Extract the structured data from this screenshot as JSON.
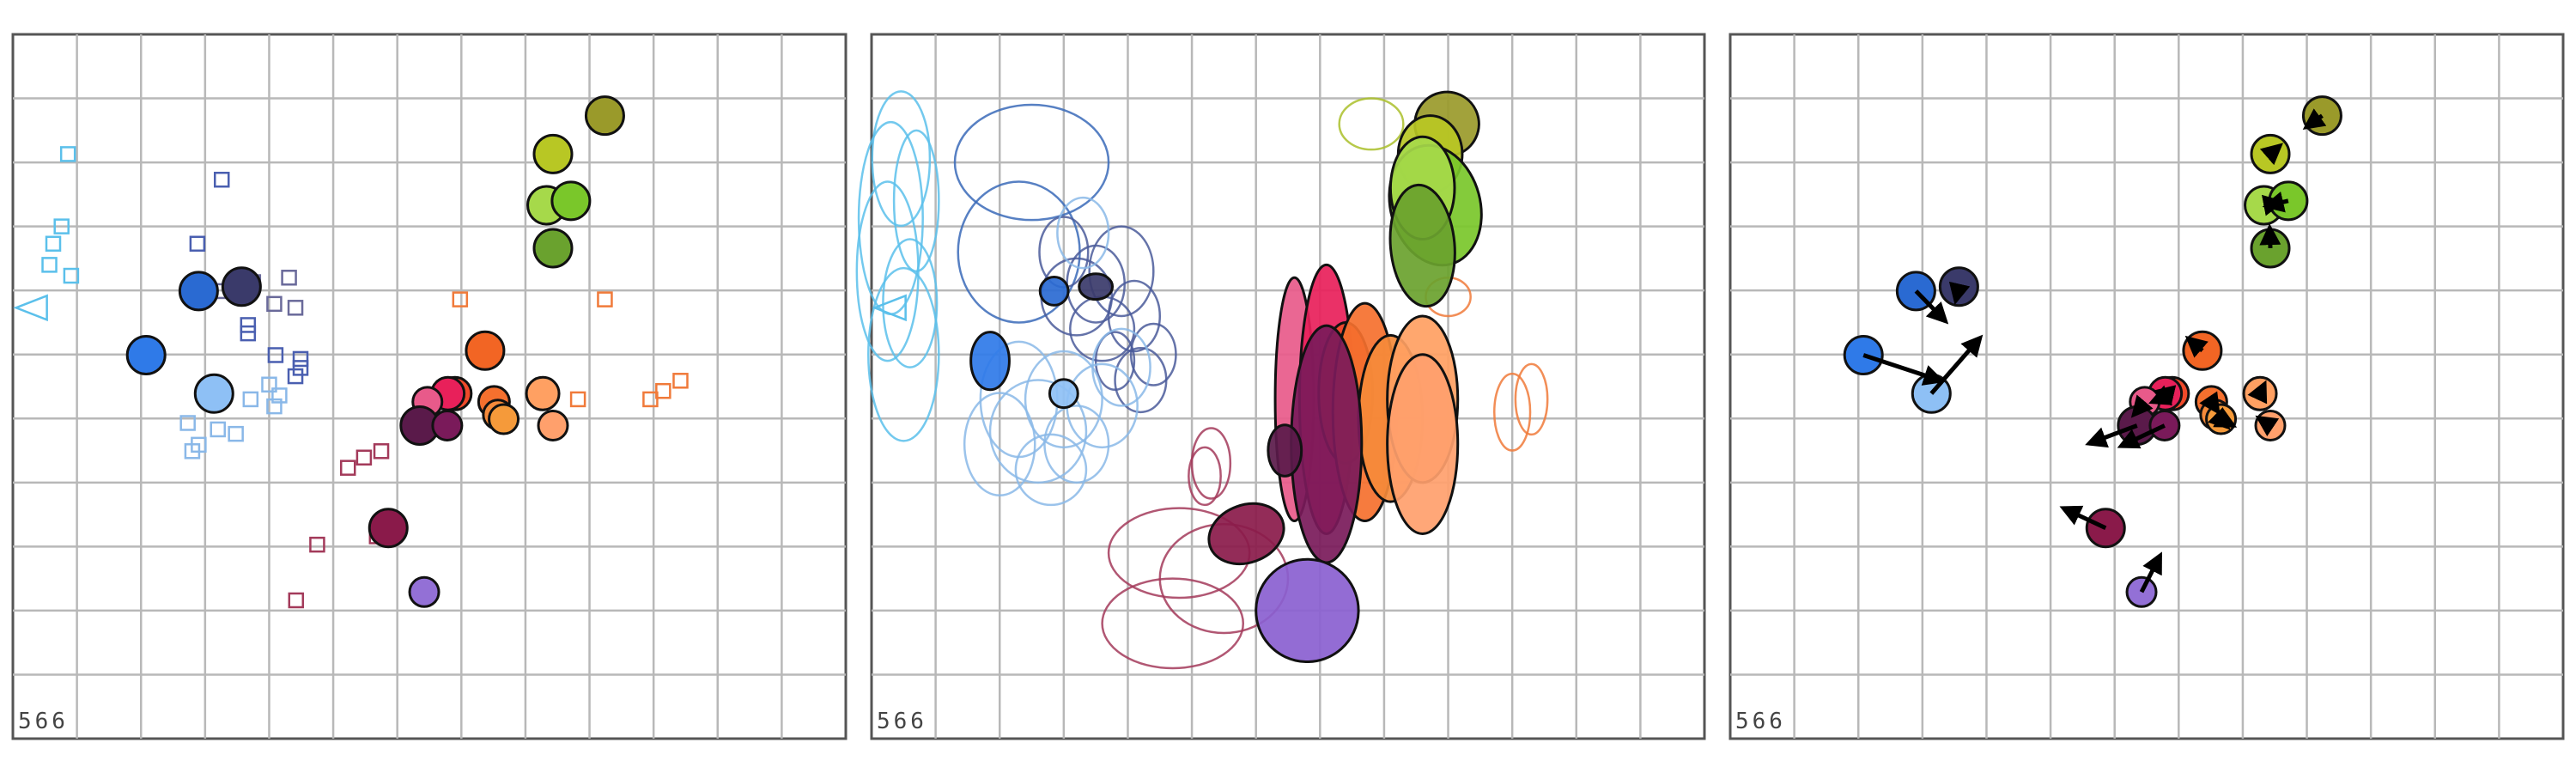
{
  "chart_data": [
    {
      "type": "scatter",
      "label": "566",
      "xlim": [
        0,
        13
      ],
      "ylim": [
        0,
        11
      ],
      "grid": true,
      "faded": false,
      "squares": [
        [
          0.86,
          9.13,
          "#5bc0eb"
        ],
        [
          0.76,
          8.0,
          "#5bc0eb"
        ],
        [
          0.63,
          7.73,
          "#5bc0eb"
        ],
        [
          0.57,
          7.4,
          "#5bc0eb"
        ],
        [
          0.91,
          7.23,
          "#5bc0eb"
        ],
        [
          3.26,
          8.73,
          "#4a5fb0"
        ],
        [
          2.88,
          7.73,
          "#4a5fb0"
        ],
        [
          3.52,
          7.06,
          "#6a6a9a"
        ],
        [
          3.75,
          7.13,
          "#6a6a9a"
        ],
        [
          3.26,
          6.99,
          "#6a6a9a"
        ],
        [
          4.31,
          7.2,
          "#6a6a9a"
        ],
        [
          4.08,
          6.79,
          "#6a6a9a"
        ],
        [
          4.41,
          6.73,
          "#6a6a9a"
        ],
        [
          3.67,
          6.46,
          "#4a5fb0"
        ],
        [
          3.67,
          6.33,
          "#4a5fb0"
        ],
        [
          4.1,
          5.99,
          "#4a5fb0"
        ],
        [
          4.49,
          5.93,
          "#4a5fb0"
        ],
        [
          4.49,
          5.79,
          "#4a5fb0"
        ],
        [
          4.41,
          5.66,
          "#4a5fb0"
        ],
        [
          4.0,
          5.53,
          "#8ab8e8"
        ],
        [
          4.16,
          5.36,
          "#8ab8e8"
        ],
        [
          3.71,
          5.3,
          "#8ab8e8"
        ],
        [
          4.08,
          5.19,
          "#8ab8e8"
        ],
        [
          2.73,
          4.93,
          "#8ab8e8"
        ],
        [
          3.2,
          4.83,
          "#8ab8e8"
        ],
        [
          3.48,
          4.76,
          "#8ab8e8"
        ],
        [
          2.9,
          4.59,
          "#8ab8e8"
        ],
        [
          2.8,
          4.49,
          "#8ab8e8"
        ],
        [
          6.98,
          6.86,
          "#f07a3a"
        ],
        [
          9.24,
          6.86,
          "#f07a3a"
        ],
        [
          8.82,
          5.3,
          "#f07a3a"
        ],
        [
          9.95,
          5.3,
          "#f07a3a"
        ],
        [
          10.15,
          5.43,
          "#f07a3a"
        ],
        [
          10.42,
          5.59,
          "#f07a3a"
        ],
        [
          5.48,
          4.39,
          "#a33a5a"
        ],
        [
          5.23,
          4.23,
          "#a33a5a"
        ],
        [
          5.75,
          4.49,
          "#a33a5a"
        ],
        [
          4.75,
          3.03,
          "#a33a5a"
        ],
        [
          5.68,
          3.16,
          "#a33a5a"
        ],
        [
          4.42,
          2.16,
          "#a33a5a"
        ]
      ],
      "circles": [
        [
          9.24,
          9.73,
          "#9a9a2a",
          22
        ],
        [
          8.43,
          9.13,
          "#b8c724",
          22
        ],
        [
          8.33,
          8.33,
          "#a6d94a",
          22
        ],
        [
          8.71,
          8.4,
          "#7ac72a",
          22
        ],
        [
          8.43,
          7.66,
          "#6aa22e",
          22
        ],
        [
          2.9,
          6.99,
          "#2a6ad2",
          22
        ],
        [
          3.57,
          7.06,
          "#3a3a6a",
          22
        ],
        [
          2.08,
          5.99,
          "#2f7ae8",
          22
        ],
        [
          3.14,
          5.39,
          "#8ec0f5",
          22
        ],
        [
          7.37,
          6.06,
          "#f26524",
          22
        ],
        [
          6.9,
          5.39,
          "#f04a2a",
          19
        ],
        [
          6.79,
          5.39,
          "#e8205a",
          19
        ],
        [
          6.47,
          5.26,
          "#e85a8a",
          17
        ],
        [
          7.51,
          5.26,
          "#f5702e",
          18
        ],
        [
          7.57,
          5.06,
          "#f58a3a",
          17
        ],
        [
          8.27,
          5.39,
          "#ffa062",
          19
        ],
        [
          6.35,
          4.89,
          "#5a1a4a",
          22
        ],
        [
          6.78,
          4.89,
          "#7a1a5a",
          17
        ],
        [
          7.66,
          4.99,
          "#f59a3a",
          17
        ],
        [
          8.43,
          4.89,
          "#ffa06c",
          17
        ],
        [
          5.86,
          3.29,
          "#8a1a4a",
          22
        ],
        [
          6.42,
          2.29,
          "#9370d6",
          17
        ]
      ],
      "triangle": [
        0.29,
        6.73,
        "#5bc0eb"
      ]
    },
    {
      "type": "scatter",
      "label": "566",
      "xlim": [
        0,
        13
      ],
      "ylim": [
        0,
        11
      ],
      "grid": true,
      "ellipses_outline": [
        [
          0.46,
          9.06,
          0.45,
          1.05,
          0,
          "#5bc0eb"
        ],
        [
          0.3,
          8.13,
          0.5,
          1.5,
          0,
          "#5bc0eb"
        ],
        [
          0.25,
          7.3,
          0.48,
          1.4,
          0,
          "#5bc0eb"
        ],
        [
          0.6,
          6.8,
          0.42,
          1.0,
          0,
          "#5bc0eb"
        ],
        [
          0.5,
          6.0,
          0.55,
          1.35,
          0,
          "#5bc0eb"
        ],
        [
          0.7,
          8.4,
          0.35,
          1.1,
          0,
          "#5bc0eb"
        ],
        [
          2.5,
          9.0,
          1.2,
          0.9,
          0,
          "#3a6ab8"
        ],
        [
          2.3,
          7.6,
          0.95,
          1.1,
          0,
          "#3a6ab8"
        ],
        [
          3.2,
          6.9,
          0.55,
          0.6,
          0,
          "#4a5a9a"
        ],
        [
          3.5,
          7.1,
          0.45,
          0.6,
          0,
          "#4a5a9a"
        ],
        [
          3.9,
          7.3,
          0.5,
          0.7,
          0,
          "#4a5a9a"
        ],
        [
          3.0,
          7.6,
          0.38,
          0.55,
          0,
          "#4a5a9a"
        ],
        [
          4.1,
          6.6,
          0.4,
          0.55,
          0,
          "#4a5a9a"
        ],
        [
          3.6,
          6.4,
          0.5,
          0.5,
          0,
          "#4a5a9a"
        ],
        [
          4.4,
          6.0,
          0.35,
          0.48,
          0,
          "#4a5a9a"
        ],
        [
          3.8,
          5.9,
          0.3,
          0.45,
          0,
          "#4a5a9a"
        ],
        [
          4.2,
          5.6,
          0.4,
          0.5,
          0,
          "#4a5a9a"
        ],
        [
          3.3,
          7.9,
          0.4,
          0.55,
          0,
          "#8ab8e8"
        ],
        [
          3.0,
          5.3,
          0.6,
          0.75,
          0,
          "#8ab8e8"
        ],
        [
          2.6,
          4.8,
          0.75,
          0.8,
          0,
          "#8ab8e8"
        ],
        [
          2.3,
          5.3,
          0.6,
          0.9,
          0,
          "#8ab8e8"
        ],
        [
          3.2,
          4.6,
          0.5,
          0.6,
          0,
          "#8ab8e8"
        ],
        [
          3.6,
          5.2,
          0.55,
          0.65,
          0,
          "#8ab8e8"
        ],
        [
          3.9,
          5.8,
          0.45,
          0.6,
          0,
          "#8ab8e8"
        ],
        [
          2.8,
          4.2,
          0.55,
          0.55,
          0,
          "#8ab8e8"
        ],
        [
          2.0,
          4.6,
          0.55,
          0.8,
          0,
          "#8ab8e8"
        ],
        [
          7.8,
          9.6,
          0.5,
          0.4,
          0,
          "#aac02a"
        ],
        [
          9.0,
          6.9,
          0.35,
          0.3,
          0,
          "#f07a3a"
        ],
        [
          10.3,
          5.3,
          0.25,
          0.55,
          0,
          "#f07a3a"
        ],
        [
          10.0,
          5.1,
          0.28,
          0.6,
          0,
          "#f07a3a"
        ],
        [
          5.3,
          4.3,
          0.3,
          0.55,
          0,
          "#a33a5a"
        ],
        [
          5.2,
          4.1,
          0.25,
          0.45,
          0,
          "#a33a5a"
        ],
        [
          4.8,
          2.9,
          1.1,
          0.7,
          0,
          "#a33a5a"
        ],
        [
          5.5,
          2.5,
          1.0,
          0.85,
          0,
          "#a33a5a"
        ],
        [
          4.7,
          1.8,
          1.1,
          0.7,
          0,
          "#a33a5a"
        ]
      ],
      "ellipses_filled": [
        [
          8.98,
          9.6,
          0.5,
          0.5,
          -20,
          "#9a9a2a"
        ],
        [
          8.72,
          9.13,
          0.5,
          0.6,
          0,
          "#b8c724"
        ],
        [
          8.8,
          8.33,
          0.7,
          0.95,
          -15,
          "#7ac72a"
        ],
        [
          8.6,
          8.6,
          0.5,
          0.8,
          0,
          "#a6d94a"
        ],
        [
          8.6,
          7.7,
          0.5,
          0.95,
          -5,
          "#6aa22e"
        ],
        [
          1.85,
          5.9,
          0.3,
          0.45,
          0,
          "#2f7ae8"
        ],
        [
          2.85,
          6.99,
          0.22,
          0.22,
          0,
          "#2a6ad2"
        ],
        [
          3.5,
          7.06,
          0.26,
          0.2,
          0,
          "#3a3a6a"
        ],
        [
          3.0,
          5.39,
          0.22,
          0.22,
          0,
          "#8ec0f5"
        ],
        [
          6.6,
          5.3,
          0.3,
          1.9,
          0,
          "#e85a8a"
        ],
        [
          7.1,
          5.3,
          0.42,
          2.1,
          0,
          "#e8205a"
        ],
        [
          7.4,
          5.4,
          0.42,
          1.1,
          0,
          "#f04a2a"
        ],
        [
          7.7,
          5.1,
          0.5,
          1.7,
          0,
          "#f5702e"
        ],
        [
          8.1,
          5.0,
          0.5,
          1.3,
          0,
          "#f58a3a"
        ],
        [
          8.6,
          5.3,
          0.55,
          1.3,
          0,
          "#ffa062"
        ],
        [
          8.6,
          4.6,
          0.55,
          1.4,
          0,
          "#ffa06c"
        ],
        [
          7.1,
          4.6,
          0.55,
          1.85,
          0,
          "#7a1a5a"
        ],
        [
          6.45,
          4.5,
          0.26,
          0.4,
          0,
          "#5a1a4a"
        ],
        [
          5.85,
          3.2,
          0.6,
          0.45,
          -20,
          "#8a1a4a"
        ],
        [
          6.8,
          2.0,
          0.8,
          0.8,
          -20,
          "#8a60d0"
        ]
      ],
      "triangle": [
        0.29,
        6.73,
        "#5bc0eb"
      ]
    },
    {
      "type": "scatter",
      "label": "566",
      "xlim": [
        0,
        13
      ],
      "ylim": [
        0,
        11
      ],
      "grid": true,
      "faded": true,
      "circles": [
        [
          9.24,
          9.73,
          "#9a9a2a",
          22
        ],
        [
          8.43,
          9.13,
          "#b8c724",
          22
        ],
        [
          8.33,
          8.33,
          "#a6d94a",
          22
        ],
        [
          8.71,
          8.4,
          "#7ac72a",
          22
        ],
        [
          8.43,
          7.66,
          "#6aa22e",
          22
        ],
        [
          2.9,
          6.99,
          "#2a6ad2",
          22
        ],
        [
          3.57,
          7.06,
          "#3a3a6a",
          22
        ],
        [
          2.08,
          5.99,
          "#2f7ae8",
          22
        ],
        [
          3.14,
          5.39,
          "#8ec0f5",
          22
        ],
        [
          7.37,
          6.06,
          "#f26524",
          22
        ],
        [
          6.9,
          5.39,
          "#f04a2a",
          19
        ],
        [
          6.79,
          5.39,
          "#e8205a",
          19
        ],
        [
          6.47,
          5.26,
          "#e85a8a",
          17
        ],
        [
          7.51,
          5.26,
          "#f5702e",
          18
        ],
        [
          7.57,
          5.06,
          "#f58a3a",
          17
        ],
        [
          8.27,
          5.39,
          "#ffa062",
          19
        ],
        [
          6.35,
          4.89,
          "#5a1a4a",
          22
        ],
        [
          6.78,
          4.89,
          "#7a1a5a",
          17
        ],
        [
          7.66,
          4.99,
          "#f59a3a",
          17
        ],
        [
          8.43,
          4.89,
          "#ffa06c",
          17
        ],
        [
          5.86,
          3.29,
          "#8a1a4a",
          22
        ],
        [
          6.42,
          2.29,
          "#9370d6",
          17
        ]
      ],
      "arrows": [
        [
          9.24,
          9.73,
          8.99,
          9.55
        ],
        [
          8.43,
          9.13,
          8.58,
          9.26
        ],
        [
          8.33,
          8.33,
          8.59,
          8.38
        ],
        [
          8.71,
          8.4,
          8.37,
          8.32
        ],
        [
          8.43,
          7.66,
          8.42,
          7.98
        ],
        [
          2.9,
          6.99,
          3.36,
          6.52
        ],
        [
          3.57,
          7.06,
          3.52,
          6.84
        ],
        [
          2.08,
          5.99,
          3.29,
          5.59
        ],
        [
          3.14,
          5.39,
          3.9,
          6.26
        ],
        [
          7.37,
          6.06,
          7.15,
          6.25
        ],
        [
          6.9,
          5.39,
          6.59,
          5.26
        ],
        [
          6.79,
          5.39,
          6.66,
          5.42
        ],
        [
          6.47,
          5.26,
          6.3,
          5.06
        ],
        [
          7.51,
          5.26,
          7.61,
          5.11
        ],
        [
          7.57,
          5.06,
          7.76,
          4.87
        ],
        [
          8.27,
          5.39,
          8.34,
          5.54
        ],
        [
          6.35,
          4.89,
          5.6,
          4.61
        ],
        [
          6.78,
          4.89,
          6.1,
          4.57
        ],
        [
          7.66,
          4.99,
          7.85,
          4.89
        ],
        [
          8.43,
          4.89,
          8.25,
          5.01
        ],
        [
          5.86,
          3.29,
          5.2,
          3.6
        ],
        [
          6.42,
          2.29,
          6.71,
          2.86
        ]
      ]
    }
  ]
}
